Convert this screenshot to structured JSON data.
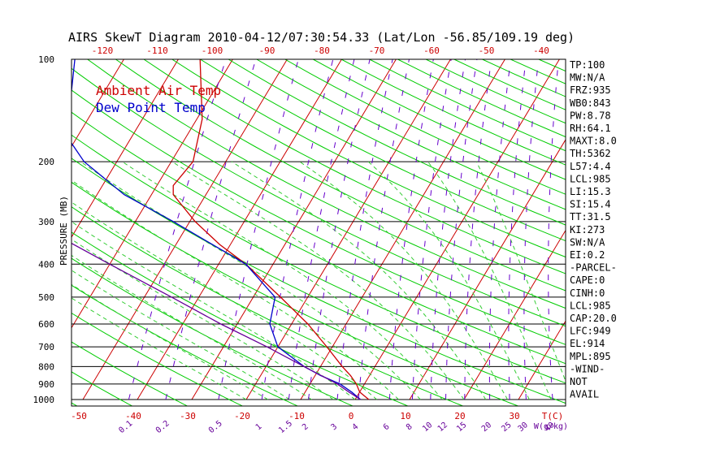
{
  "chart_data": {
    "type": "line",
    "title": "AIRS SkewT Diagram 2010-04-12/07:30:54.33 (Lat/Lon -56.85/109.19 deg)",
    "ylabel": "PRESSURE (MB)",
    "y_scale": "log",
    "ylim": [
      1000,
      100
    ],
    "pressure_ticks": [
      "100",
      "200",
      "300",
      "400",
      "500",
      "600",
      "700",
      "800",
      "900",
      "1000"
    ],
    "pressure_levels": [
      100,
      200,
      300,
      400,
      500,
      600,
      700,
      800,
      900,
      1000
    ],
    "temp_ticks_bottom": [
      "-50",
      "-40",
      "-30",
      "-20",
      "-10",
      "0",
      "10",
      "20",
      "30"
    ],
    "temp_ticks_bottom_values": [
      -50,
      -40,
      -30,
      -20,
      -10,
      0,
      10,
      20,
      30
    ],
    "temp_ticks_top": [
      "-120",
      "-110",
      "-100",
      "-90",
      "-80",
      "-70",
      "-60",
      "-50",
      "-40"
    ],
    "temp_ticks_top_values": [
      -120,
      -110,
      -100,
      -90,
      -80,
      -70,
      -60,
      -50,
      -40
    ],
    "temp_unit_label": "T(C)",
    "mixing_ratio_labels": [
      "0.1",
      "0.2",
      "0.5",
      "1",
      "1.5",
      "2",
      "3",
      "4",
      "6",
      "8",
      "10",
      "12",
      "15",
      "20",
      "25",
      "30",
      "40"
    ],
    "mixing_ratio_values": [
      0.1,
      0.2,
      0.5,
      1,
      1.5,
      2,
      3,
      4,
      6,
      8,
      10,
      12,
      15,
      20,
      25,
      30,
      40
    ],
    "mixing_ratio_unit": "W(g/kg)",
    "series": [
      {
        "name": "Ambient Air Temp",
        "color": "#cc0000",
        "points": [
          {
            "p": 1000,
            "t": 2.5
          },
          {
            "p": 950,
            "t": 0
          },
          {
            "p": 900,
            "t": -1.5
          },
          {
            "p": 850,
            "t": -3.5
          },
          {
            "p": 800,
            "t": -6
          },
          {
            "p": 700,
            "t": -11
          },
          {
            "p": 600,
            "t": -17
          },
          {
            "p": 500,
            "t": -25
          },
          {
            "p": 400,
            "t": -35
          },
          {
            "p": 350,
            "t": -42
          },
          {
            "p": 300,
            "t": -49
          },
          {
            "p": 250,
            "t": -56
          },
          {
            "p": 235,
            "t": -57
          },
          {
            "p": 200,
            "t": -56
          },
          {
            "p": 150,
            "t": -59
          },
          {
            "p": 100,
            "t": -66
          }
        ]
      },
      {
        "name": "Dew Point Temp",
        "color": "#0000cc",
        "points": [
          {
            "p": 1000,
            "t": 1
          },
          {
            "p": 950,
            "t": -1.5
          },
          {
            "p": 900,
            "t": -4.5
          },
          {
            "p": 850,
            "t": -9
          },
          {
            "p": 800,
            "t": -13
          },
          {
            "p": 700,
            "t": -20
          },
          {
            "p": 600,
            "t": -24
          },
          {
            "p": 500,
            "t": -26
          },
          {
            "p": 400,
            "t": -35
          },
          {
            "p": 300,
            "t": -53
          },
          {
            "p": 250,
            "t": -65
          },
          {
            "p": 200,
            "t": -76
          },
          {
            "p": 150,
            "t": -86
          },
          {
            "p": 125,
            "t": -86
          },
          {
            "p": 100,
            "t": -89
          }
        ]
      },
      {
        "name": "",
        "color": "#660099",
        "points": [
          {
            "p": 1000,
            "t": 1
          },
          {
            "p": 950,
            "t": -2
          },
          {
            "p": 900,
            "t": -5
          },
          {
            "p": 800,
            "t": -13
          },
          {
            "p": 700,
            "t": -22
          },
          {
            "p": 600,
            "t": -33
          },
          {
            "p": 500,
            "t": -45
          },
          {
            "p": 400,
            "t": -60
          },
          {
            "p": 300,
            "t": -79
          },
          {
            "p": 250,
            "t": -91
          },
          {
            "p": 200,
            "t": -105
          },
          {
            "p": 150,
            "t": -122
          },
          {
            "p": 100,
            "t": -148
          }
        ]
      }
    ],
    "side_panel": [
      "TP:100",
      "MW:N/A",
      "FRZ:935",
      "WB0:843",
      "PW:8.78",
      "RH:64.1",
      "MAXT:8.0",
      "TH:5362",
      "L57:4.4",
      "LCL:985",
      "LI:15.3",
      "SI:15.4",
      "TT:31.5",
      "KI:273",
      "SW:N/A",
      "EI:0.2",
      "-PARCEL-",
      "CAPE:0",
      "CINH:0",
      "LCL:985",
      "CAP:20.0",
      "LFC:949",
      "EL:914",
      "MPL:895",
      "-WIND-",
      "NOT",
      "AVAIL"
    ],
    "legend": "top-left",
    "grid": true
  },
  "colors": {
    "temp_grid": "#cc0000",
    "dry_adiabat": "#00cc00",
    "moist_adiabat": "#33cc33",
    "mixing_ratio": "#6600cc"
  }
}
